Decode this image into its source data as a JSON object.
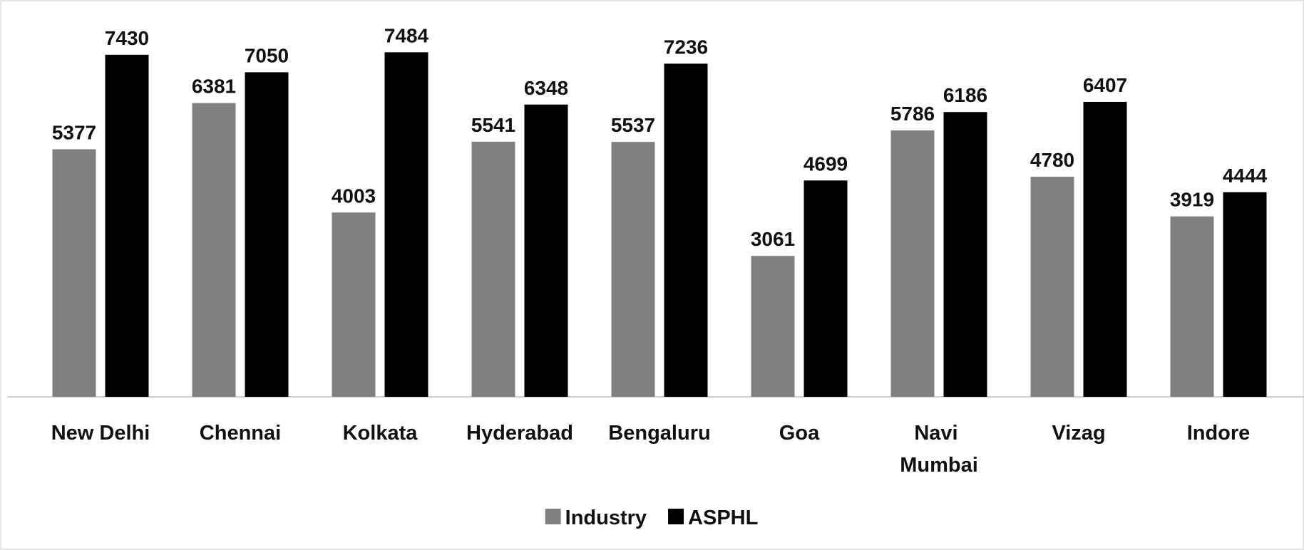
{
  "chart_data": {
    "type": "bar",
    "categories": [
      "New Delhi",
      "Chennai",
      "Kolkata",
      "Hyderabad",
      "Bengaluru",
      "Goa",
      "Navi Mumbai",
      "Vizag",
      "Indore"
    ],
    "series": [
      {
        "name": "Industry",
        "color": "#808080",
        "values": [
          5377,
          6381,
          4003,
          5541,
          5537,
          3061,
          5786,
          4780,
          3919
        ]
      },
      {
        "name": "ASPHL",
        "color": "#000000",
        "values": [
          7430,
          7050,
          7484,
          6348,
          7236,
          4699,
          6186,
          6407,
          4444
        ]
      }
    ],
    "ylim": [
      0,
      8000
    ],
    "grid": false,
    "legend": "bottom"
  }
}
